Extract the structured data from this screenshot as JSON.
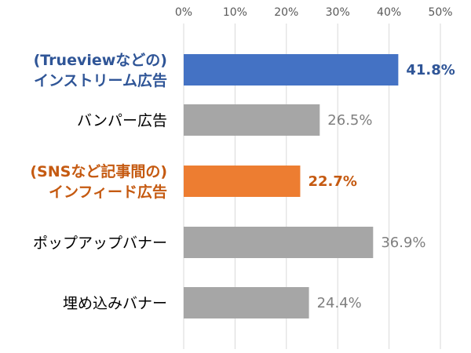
{
  "chart_data": {
    "type": "bar",
    "orientation": "horizontal",
    "title": "",
    "xlabel": "",
    "ylabel": "",
    "xlim": [
      0,
      50
    ],
    "x_tick_labels": [
      "0%",
      "10%",
      "20%",
      "30%",
      "40%",
      "50%"
    ],
    "x_axis_position": "top",
    "grid": true,
    "legend": "none",
    "categories": [
      {
        "id": "instream",
        "lines": [
          "(Trueviewなどの)",
          "インストリーム広告"
        ],
        "value": 41.8,
        "label": "41.8%",
        "bar_color": "#4472c4",
        "text_color": "#2f5597",
        "bold": true
      },
      {
        "id": "bumper",
        "lines": [
          "バンパー広告"
        ],
        "value": 26.5,
        "label": "26.5%",
        "bar_color": "#a6a6a6",
        "text_color": "#000000",
        "label_color": "#7f7f7f",
        "bold": false
      },
      {
        "id": "infeed",
        "lines": [
          "(SNSなど記事間の)",
          "インフィード広告"
        ],
        "value": 22.7,
        "label": "22.7%",
        "bar_color": "#ed7d31",
        "text_color": "#c55a11",
        "bold": true
      },
      {
        "id": "popup",
        "lines": [
          "ポップアップバナー"
        ],
        "value": 36.9,
        "label": "36.9%",
        "bar_color": "#a6a6a6",
        "text_color": "#000000",
        "label_color": "#7f7f7f",
        "bold": false
      },
      {
        "id": "embedded",
        "lines": [
          "埋め込みバナー"
        ],
        "value": 24.4,
        "label": "24.4%",
        "bar_color": "#a6a6a6",
        "text_color": "#000000",
        "label_color": "#7f7f7f",
        "bold": false
      }
    ]
  }
}
